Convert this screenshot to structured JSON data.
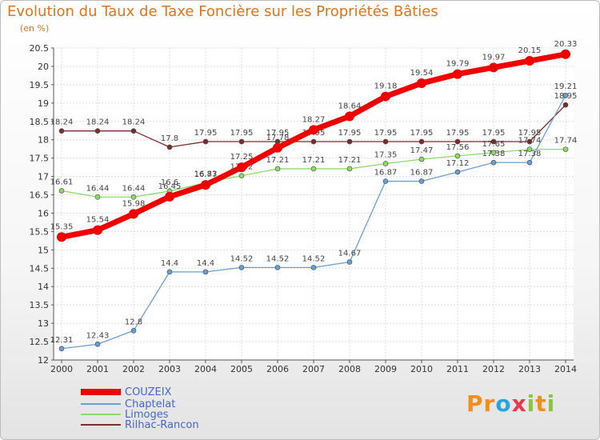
{
  "chart_data": {
    "type": "line",
    "title": "Evolution du Taux de Taxe Foncière sur les Propriétés Bâties",
    "ylabel": "(en %)",
    "xlabel": "",
    "ylim": [
      12,
      20.5
    ],
    "yticks": [
      "12",
      "12.5",
      "13",
      "13.5",
      "14",
      "14.5",
      "15",
      "15.5",
      "16",
      "16.5",
      "17",
      "17.5",
      "18",
      "18.5",
      "19",
      "19.5",
      "20",
      "20.5"
    ],
    "categories": [
      "2000",
      "2001",
      "2002",
      "2003",
      "2004",
      "2005",
      "2006",
      "2007",
      "2008",
      "2009",
      "2010",
      "2011",
      "2012",
      "2013",
      "2014"
    ],
    "grid": true,
    "series": [
      {
        "name": "Rilhac-Rancon",
        "color": "#7a2e2e",
        "values": [
          18.24,
          18.24,
          18.24,
          17.8,
          17.95,
          17.95,
          17.95,
          17.95,
          17.95,
          17.95,
          17.95,
          17.95,
          17.95,
          17.95,
          18.95
        ],
        "labels": [
          "18.24",
          "18.24",
          "18.24",
          "17.8",
          "17.95",
          "17.95",
          "17.95",
          "17.95",
          "17.95",
          "17.95",
          "17.95",
          "17.95",
          "17.95",
          "17.95",
          "18.95"
        ]
      },
      {
        "name": "Limoges",
        "color": "#8ed96a",
        "values": [
          16.61,
          16.44,
          16.44,
          16.6,
          16.83,
          17.02,
          17.21,
          17.21,
          17.21,
          17.35,
          17.47,
          17.56,
          17.65,
          17.74,
          17.74
        ],
        "labels": [
          "16.61",
          "16.44",
          "16.44",
          "16.6",
          "16.83",
          "17.02",
          "17.21",
          "17.21",
          "17.21",
          "17.35",
          "17.47",
          "17.56",
          "17.65",
          "17.74",
          "17.74"
        ]
      },
      {
        "name": "Chaptelat",
        "color": "#6a9fd4",
        "values": [
          12.31,
          12.43,
          12.8,
          14.4,
          14.4,
          14.52,
          14.52,
          14.52,
          14.67,
          16.87,
          16.87,
          17.12,
          17.38,
          17.38,
          19.21
        ],
        "labels": [
          "12.31",
          "12.43",
          "12.8",
          "14.4",
          "14.4",
          "14.52",
          "14.52",
          "14.52",
          "14.67",
          "16.87",
          "16.87",
          "17.12",
          "17.38",
          "17.38",
          "19.21"
        ]
      },
      {
        "name": "COUZEIX",
        "color": "#ee0000",
        "values": [
          15.35,
          15.54,
          15.98,
          16.45,
          16.77,
          17.25,
          17.78,
          18.27,
          18.64,
          19.18,
          19.54,
          19.79,
          19.97,
          20.15,
          20.33
        ],
        "labels": [
          "15.35",
          "15.54",
          "15.98",
          "16.45",
          "16.77",
          "17.25",
          "17.78",
          "18.27",
          "18.64",
          "19.18",
          "19.54",
          "19.79",
          "19.97",
          "20.15",
          "20.33"
        ]
      }
    ]
  },
  "legend": [
    {
      "name": "COUZEIX",
      "color": "#ee0000"
    },
    {
      "name": "Chaptelat",
      "color": "#6a9fd4"
    },
    {
      "name": "Limoges",
      "color": "#8ed96a"
    },
    {
      "name": "Rilhac-Rancon",
      "color": "#7a2e2e"
    }
  ],
  "logo": {
    "p1": "Pr",
    "p2": "o",
    "p3": "x",
    "p4": "i",
    "p5": "t",
    "p6": "i"
  }
}
